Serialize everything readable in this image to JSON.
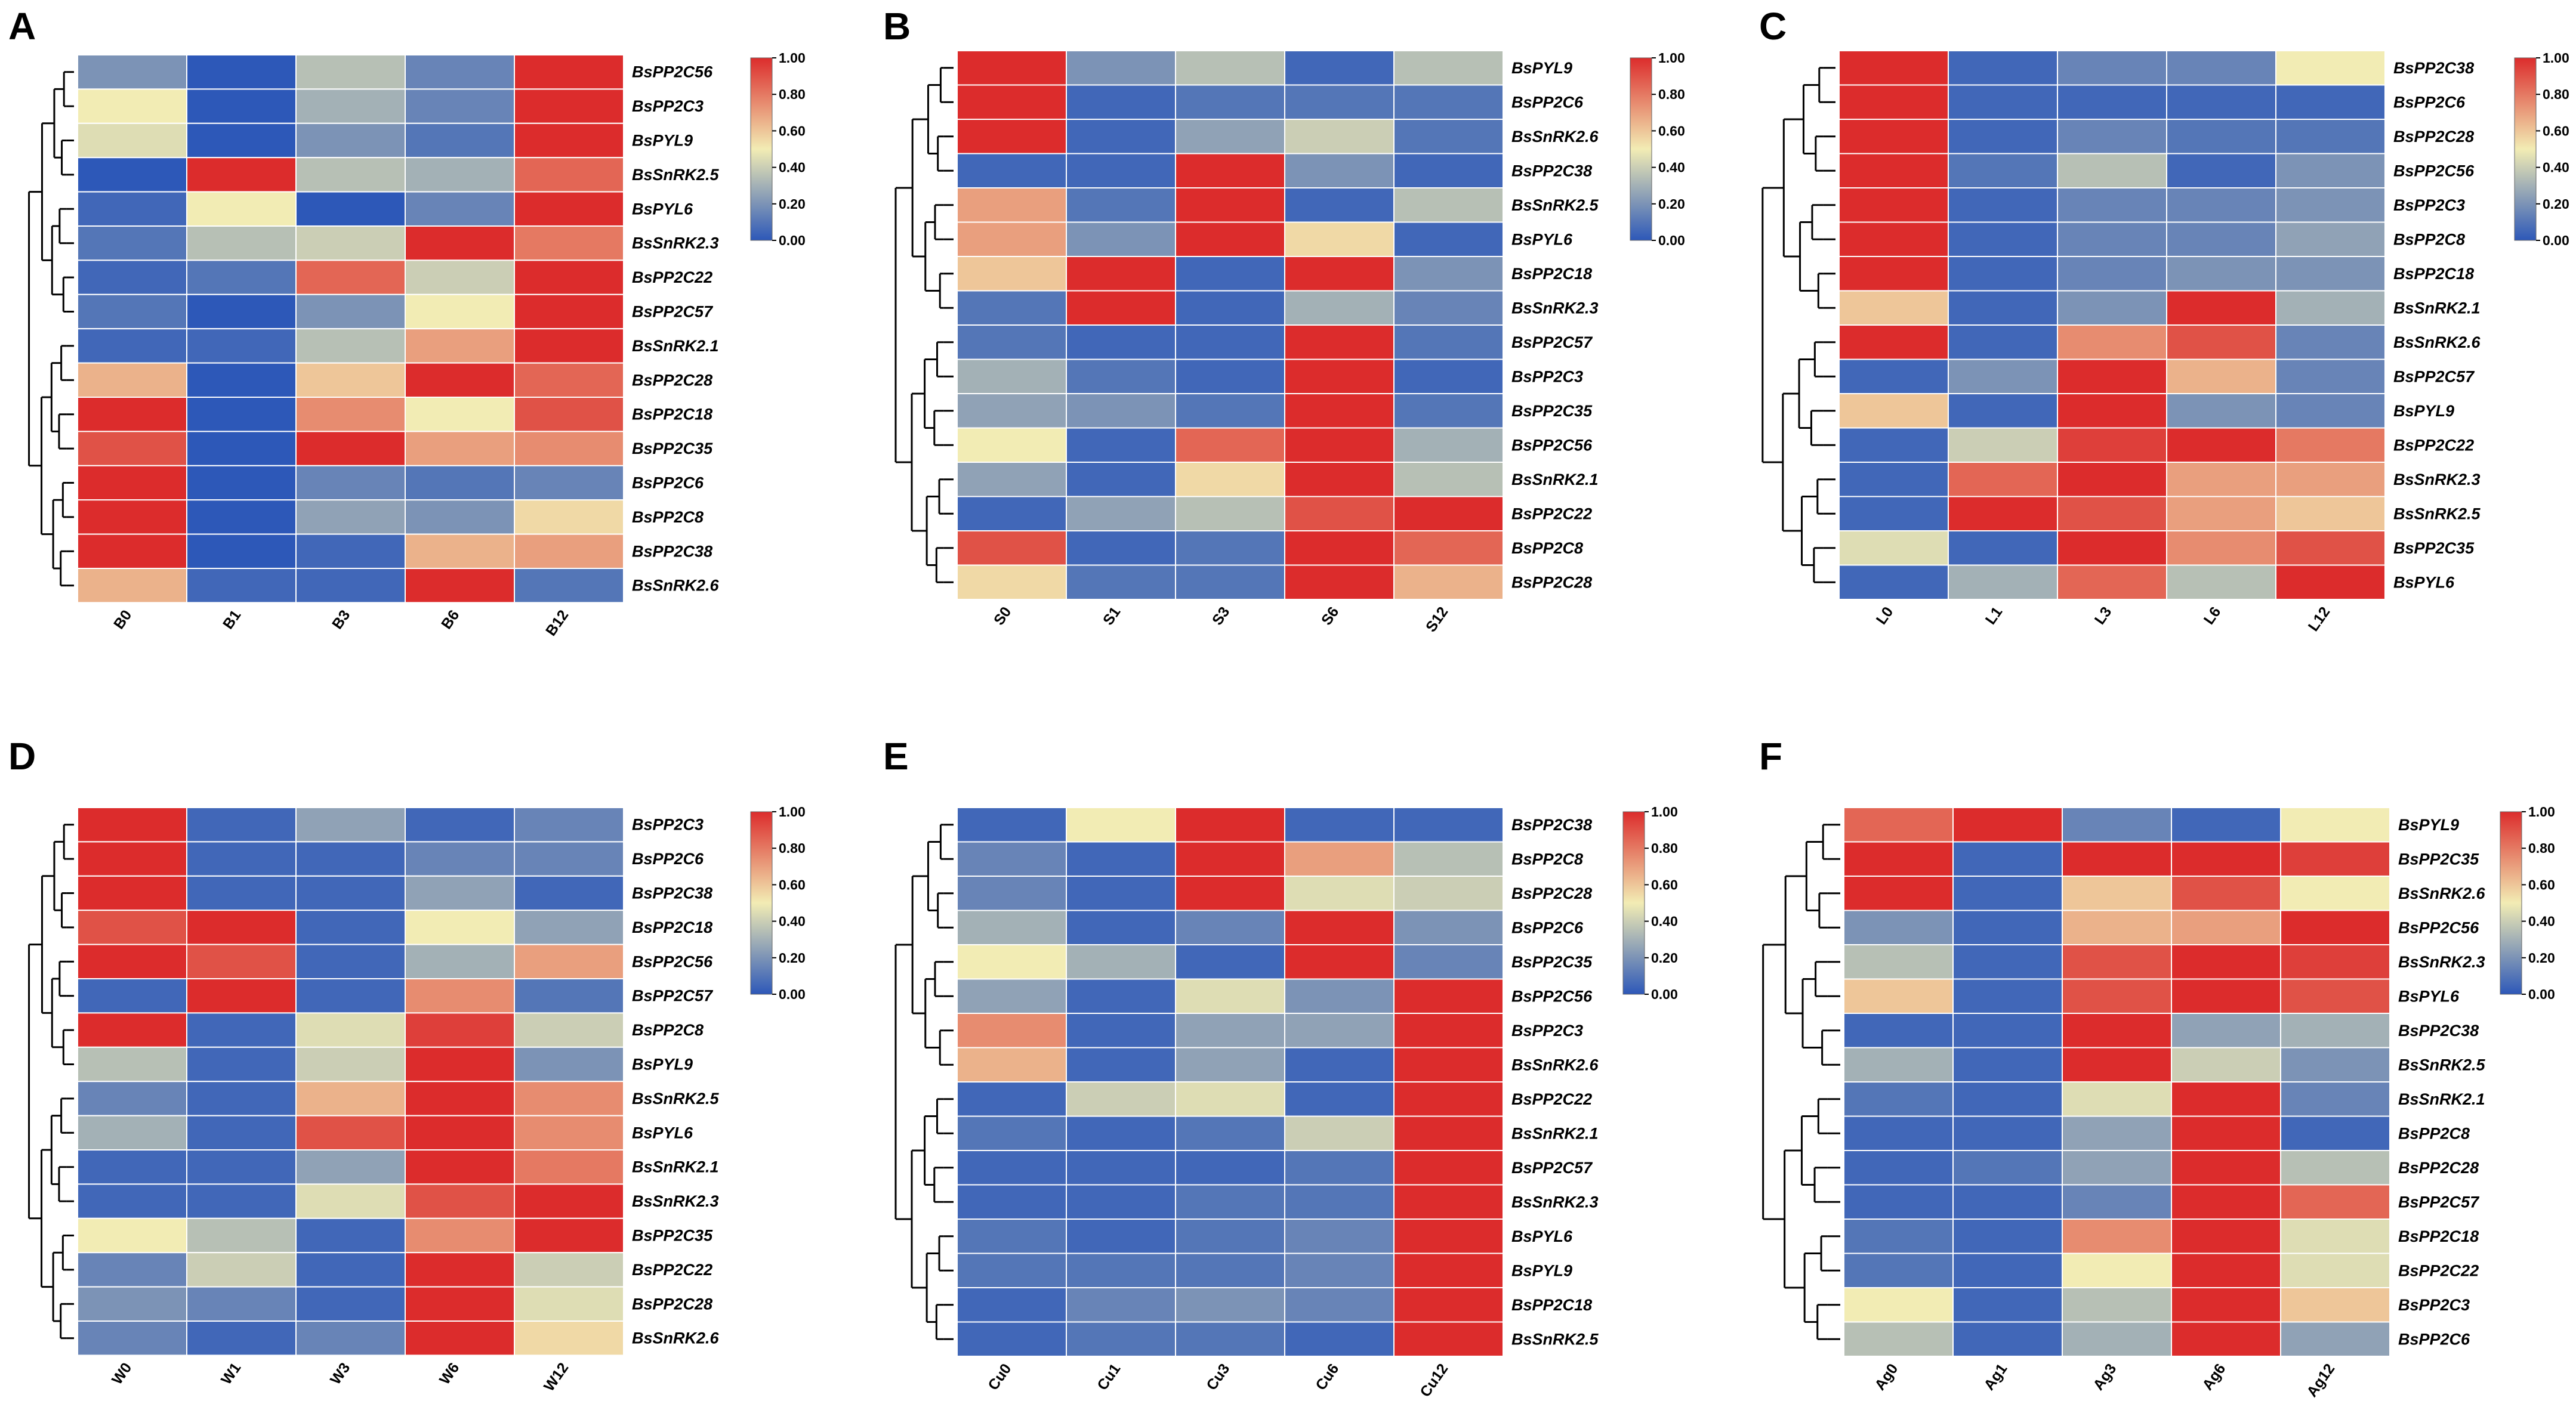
{
  "colors": {
    "low": "#2d58b8",
    "mid": "#f2ecb4",
    "high": "#dc2c2c"
  },
  "chart_data": [
    {
      "type": "heatmap",
      "panel": "A",
      "title": "",
      "columns": [
        "B0",
        "B1",
        "B3",
        "B6",
        "B12"
      ],
      "rows": [
        "BsPP2C56",
        "BsPP2C3",
        "BsPYL9",
        "BsSnRK2.5",
        "BsPYL6",
        "BsSnRK2.3",
        "BsPP2C22",
        "BsPP2C57",
        "BsSnRK2.1",
        "BsPP2C28",
        "BsPP2C18",
        "BsPP2C35",
        "BsPP2C6",
        "BsPP2C8",
        "BsPP2C38",
        "BsSnRK2.6"
      ],
      "values": [
        [
          0.2,
          0.0,
          0.35,
          0.15,
          1.0
        ],
        [
          0.5,
          0.0,
          0.3,
          0.15,
          1.0
        ],
        [
          0.45,
          0.0,
          0.2,
          0.1,
          1.0
        ],
        [
          0.0,
          1.0,
          0.35,
          0.3,
          0.85
        ],
        [
          0.05,
          0.5,
          0.0,
          0.15,
          1.0
        ],
        [
          0.1,
          0.35,
          0.4,
          1.0,
          0.8
        ],
        [
          0.05,
          0.1,
          0.85,
          0.4,
          1.0
        ],
        [
          0.1,
          0.0,
          0.2,
          0.5,
          1.0
        ],
        [
          0.05,
          0.05,
          0.35,
          0.7,
          1.0
        ],
        [
          0.65,
          0.0,
          0.6,
          1.0,
          0.85
        ],
        [
          1.0,
          0.0,
          0.75,
          0.5,
          0.9
        ],
        [
          0.9,
          0.0,
          1.0,
          0.7,
          0.75
        ],
        [
          1.0,
          0.0,
          0.15,
          0.1,
          0.15
        ],
        [
          1.0,
          0.0,
          0.25,
          0.2,
          0.55
        ],
        [
          1.0,
          0.0,
          0.05,
          0.65,
          0.7
        ],
        [
          0.65,
          0.05,
          0.05,
          1.0,
          0.1
        ]
      ],
      "colorbar": {
        "min": 0.0,
        "max": 1.0,
        "ticks": [
          "1.00",
          "0.80",
          "0.60",
          "0.40",
          "0.20",
          "0.00"
        ]
      }
    },
    {
      "type": "heatmap",
      "panel": "B",
      "title": "",
      "columns": [
        "S0",
        "S1",
        "S3",
        "S6",
        "S12"
      ],
      "rows": [
        "BsPYL9",
        "BsPP2C6",
        "BsSnRK2.6",
        "BsPP2C38",
        "BsSnRK2.5",
        "BsPYL6",
        "BsPP2C18",
        "BsSnRK2.3",
        "BsPP2C57",
        "BsPP2C3",
        "BsPP2C35",
        "BsPP2C56",
        "BsSnRK2.1",
        "BsPP2C22",
        "BsPP2C8",
        "BsPP2C28"
      ],
      "values": [
        [
          1.0,
          0.2,
          0.35,
          0.05,
          0.35
        ],
        [
          1.0,
          0.05,
          0.1,
          0.1,
          0.1
        ],
        [
          1.0,
          0.05,
          0.25,
          0.4,
          0.1
        ],
        [
          0.05,
          0.05,
          1.0,
          0.2,
          0.05
        ],
        [
          0.7,
          0.1,
          1.0,
          0.05,
          0.35
        ],
        [
          0.7,
          0.2,
          1.0,
          0.55,
          0.05
        ],
        [
          0.6,
          1.0,
          0.05,
          1.0,
          0.2
        ],
        [
          0.1,
          1.0,
          0.05,
          0.3,
          0.15
        ],
        [
          0.1,
          0.05,
          0.05,
          1.0,
          0.1
        ],
        [
          0.3,
          0.1,
          0.05,
          1.0,
          0.05
        ],
        [
          0.25,
          0.2,
          0.1,
          1.0,
          0.1
        ],
        [
          0.5,
          0.05,
          0.85,
          1.0,
          0.3
        ],
        [
          0.25,
          0.05,
          0.55,
          1.0,
          0.35
        ],
        [
          0.05,
          0.25,
          0.35,
          0.9,
          1.0
        ],
        [
          0.9,
          0.05,
          0.1,
          1.0,
          0.85
        ],
        [
          0.55,
          0.1,
          0.1,
          1.0,
          0.65
        ]
      ],
      "colorbar": {
        "min": 0.0,
        "max": 1.0,
        "ticks": [
          "1.00",
          "0.80",
          "0.60",
          "0.40",
          "0.20",
          "0.00"
        ]
      }
    },
    {
      "type": "heatmap",
      "panel": "C",
      "title": "",
      "columns": [
        "L0",
        "L1",
        "L3",
        "L6",
        "L12"
      ],
      "rows": [
        "BsPP2C38",
        "BsPP2C6",
        "BsPP2C28",
        "BsPP2C56",
        "BsPP2C3",
        "BsPP2C8",
        "BsPP2C18",
        "BsSnRK2.1",
        "BsSnRK2.6",
        "BsPP2C57",
        "BsPYL9",
        "BsPP2C22",
        "BsSnRK2.3",
        "BsSnRK2.5",
        "BsPP2C35",
        "BsPYL6"
      ],
      "values": [
        [
          1.0,
          0.05,
          0.15,
          0.15,
          0.5
        ],
        [
          1.0,
          0.05,
          0.05,
          0.05,
          0.05
        ],
        [
          1.0,
          0.05,
          0.15,
          0.1,
          0.1
        ],
        [
          1.0,
          0.1,
          0.35,
          0.05,
          0.2
        ],
        [
          1.0,
          0.05,
          0.15,
          0.15,
          0.2
        ],
        [
          1.0,
          0.05,
          0.15,
          0.15,
          0.25
        ],
        [
          1.0,
          0.05,
          0.15,
          0.2,
          0.2
        ],
        [
          0.6,
          0.05,
          0.2,
          1.0,
          0.3
        ],
        [
          1.0,
          0.05,
          0.75,
          0.9,
          0.15
        ],
        [
          0.05,
          0.2,
          1.0,
          0.65,
          0.15
        ],
        [
          0.6,
          0.05,
          1.0,
          0.2,
          0.15
        ],
        [
          0.05,
          0.4,
          0.95,
          1.0,
          0.8
        ],
        [
          0.05,
          0.85,
          1.0,
          0.7,
          0.7
        ],
        [
          0.05,
          1.0,
          0.9,
          0.7,
          0.6
        ],
        [
          0.45,
          0.05,
          1.0,
          0.75,
          0.9
        ],
        [
          0.05,
          0.3,
          0.85,
          0.35,
          1.0
        ]
      ],
      "colorbar": {
        "min": 0.0,
        "max": 1.0,
        "ticks": [
          "1.00",
          "0.80",
          "0.60",
          "0.40",
          "0.20",
          "0.00"
        ]
      }
    },
    {
      "type": "heatmap",
      "panel": "D",
      "title": "",
      "columns": [
        "W0",
        "W1",
        "W3",
        "W6",
        "W12"
      ],
      "rows": [
        "BsPP2C3",
        "BsPP2C6",
        "BsPP2C38",
        "BsPP2C18",
        "BsPP2C56",
        "BsPP2C57",
        "BsPP2C8",
        "BsPYL9",
        "BsSnRK2.5",
        "BsPYL6",
        "BsSnRK2.1",
        "BsSnRK2.3",
        "BsPP2C35",
        "BsPP2C22",
        "BsPP2C28",
        "BsSnRK2.6"
      ],
      "values": [
        [
          1.0,
          0.05,
          0.25,
          0.05,
          0.15
        ],
        [
          1.0,
          0.05,
          0.05,
          0.15,
          0.15
        ],
        [
          1.0,
          0.05,
          0.05,
          0.25,
          0.05
        ],
        [
          0.9,
          1.0,
          0.05,
          0.5,
          0.25
        ],
        [
          1.0,
          0.9,
          0.05,
          0.3,
          0.7
        ],
        [
          0.05,
          1.0,
          0.05,
          0.75,
          0.1
        ],
        [
          1.0,
          0.05,
          0.45,
          0.95,
          0.4
        ],
        [
          0.35,
          0.05,
          0.4,
          1.0,
          0.2
        ],
        [
          0.15,
          0.05,
          0.65,
          1.0,
          0.75
        ],
        [
          0.3,
          0.05,
          0.9,
          1.0,
          0.75
        ],
        [
          0.05,
          0.05,
          0.25,
          1.0,
          0.8
        ],
        [
          0.05,
          0.05,
          0.45,
          0.9,
          1.0
        ],
        [
          0.5,
          0.35,
          0.05,
          0.75,
          1.0
        ],
        [
          0.15,
          0.4,
          0.05,
          1.0,
          0.4
        ],
        [
          0.2,
          0.15,
          0.05,
          1.0,
          0.45
        ],
        [
          0.15,
          0.05,
          0.15,
          1.0,
          0.55
        ]
      ],
      "colorbar": {
        "min": 0.0,
        "max": 1.0,
        "ticks": [
          "1.00",
          "0.80",
          "0.60",
          "0.40",
          "0.20",
          "0.00"
        ]
      }
    },
    {
      "type": "heatmap",
      "panel": "E",
      "title": "",
      "columns": [
        "Cu0",
        "Cu1",
        "Cu3",
        "Cu6",
        "Cu12"
      ],
      "rows": [
        "BsPP2C38",
        "BsPP2C8",
        "BsPP2C28",
        "BsPP2C6",
        "BsPP2C35",
        "BsPP2C56",
        "BsPP2C3",
        "BsSnRK2.6",
        "BsPP2C22",
        "BsSnRK2.1",
        "BsPP2C57",
        "BsSnRK2.3",
        "BsPYL6",
        "BsPYL9",
        "BsPP2C18",
        "BsSnRK2.5"
      ],
      "values": [
        [
          0.05,
          0.5,
          1.0,
          0.05,
          0.05
        ],
        [
          0.15,
          0.05,
          1.0,
          0.7,
          0.35
        ],
        [
          0.15,
          0.05,
          1.0,
          0.45,
          0.4
        ],
        [
          0.3,
          0.05,
          0.15,
          1.0,
          0.2
        ],
        [
          0.5,
          0.3,
          0.05,
          1.0,
          0.15
        ],
        [
          0.25,
          0.05,
          0.45,
          0.2,
          1.0
        ],
        [
          0.75,
          0.05,
          0.25,
          0.25,
          1.0
        ],
        [
          0.65,
          0.05,
          0.25,
          0.05,
          1.0
        ],
        [
          0.05,
          0.4,
          0.45,
          0.05,
          1.0
        ],
        [
          0.1,
          0.05,
          0.1,
          0.4,
          1.0
        ],
        [
          0.05,
          0.05,
          0.05,
          0.1,
          1.0
        ],
        [
          0.05,
          0.05,
          0.1,
          0.1,
          1.0
        ],
        [
          0.1,
          0.05,
          0.1,
          0.15,
          1.0
        ],
        [
          0.1,
          0.1,
          0.1,
          0.15,
          1.0
        ],
        [
          0.05,
          0.15,
          0.2,
          0.15,
          1.0
        ],
        [
          0.05,
          0.1,
          0.1,
          0.05,
          1.0
        ]
      ],
      "colorbar": {
        "min": 0.0,
        "max": 1.0,
        "ticks": [
          "1.00",
          "0.80",
          "0.60",
          "0.40",
          "0.20",
          "0.00"
        ]
      }
    },
    {
      "type": "heatmap",
      "panel": "F",
      "title": "",
      "columns": [
        "Ag0",
        "Ag1",
        "Ag3",
        "Ag6",
        "Ag12"
      ],
      "rows": [
        "BsPYL9",
        "BsPP2C35",
        "BsSnRK2.6",
        "BsPP2C56",
        "BsSnRK2.3",
        "BsPYL6",
        "BsPP2C38",
        "BsSnRK2.5",
        "BsSnRK2.1",
        "BsPP2C8",
        "BsPP2C28",
        "BsPP2C57",
        "BsPP2C18",
        "BsPP2C22",
        "BsPP2C3",
        "BsPP2C6"
      ],
      "values": [
        [
          0.85,
          1.0,
          0.15,
          0.05,
          0.5
        ],
        [
          1.0,
          0.05,
          1.0,
          1.0,
          0.95
        ],
        [
          1.0,
          0.05,
          0.6,
          0.9,
          0.5
        ],
        [
          0.2,
          0.05,
          0.65,
          0.7,
          1.0
        ],
        [
          0.35,
          0.05,
          0.9,
          1.0,
          0.95
        ],
        [
          0.6,
          0.05,
          0.9,
          1.0,
          0.9
        ],
        [
          0.05,
          0.05,
          1.0,
          0.25,
          0.3
        ],
        [
          0.3,
          0.05,
          1.0,
          0.4,
          0.2
        ],
        [
          0.1,
          0.05,
          0.45,
          1.0,
          0.15
        ],
        [
          0.05,
          0.05,
          0.25,
          1.0,
          0.05
        ],
        [
          0.05,
          0.1,
          0.25,
          1.0,
          0.35
        ],
        [
          0.05,
          0.05,
          0.15,
          1.0,
          0.85
        ],
        [
          0.1,
          0.05,
          0.75,
          1.0,
          0.45
        ],
        [
          0.1,
          0.05,
          0.5,
          1.0,
          0.45
        ],
        [
          0.5,
          0.05,
          0.35,
          1.0,
          0.6
        ],
        [
          0.35,
          0.05,
          0.3,
          1.0,
          0.25
        ]
      ],
      "colorbar": {
        "min": 0.0,
        "max": 1.0,
        "ticks": [
          "1.00",
          "0.80",
          "0.60",
          "0.40",
          "0.20",
          "0.00"
        ]
      }
    }
  ]
}
